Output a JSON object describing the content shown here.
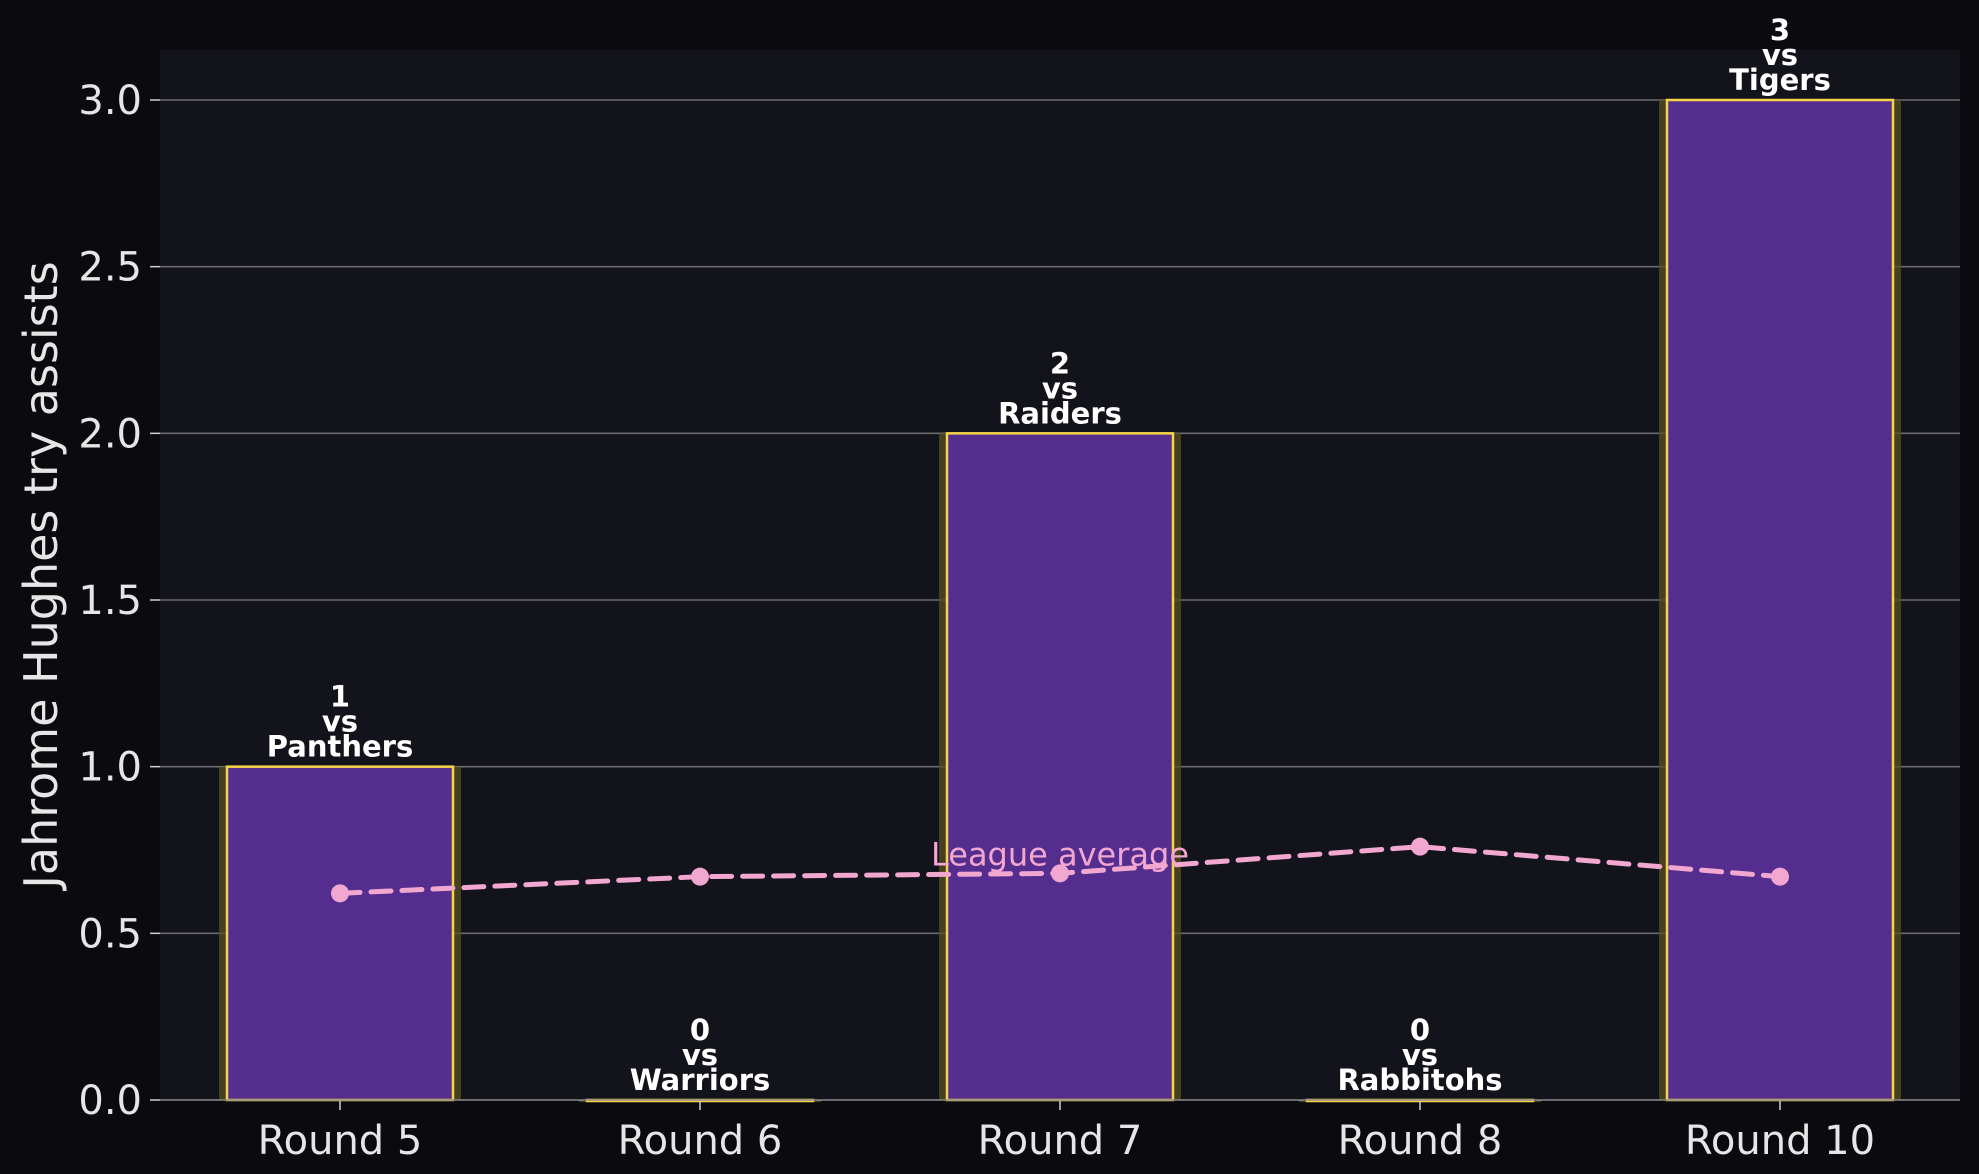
{
  "chart_data": {
    "type": "bar",
    "title": "",
    "xlabel": "",
    "ylabel": "Jahrome Hughes try assists",
    "categories": [
      "Round 5",
      "Round 6",
      "Round 7",
      "Round 8",
      "Round 10"
    ],
    "series": [
      {
        "name": "",
        "type": "bar",
        "values": [
          1,
          0,
          2,
          0,
          3
        ],
        "opponents": [
          "Panthers",
          "Warriors",
          "Raiders",
          "Rabbitohs",
          "Tigers"
        ]
      },
      {
        "name": "League average",
        "type": "line",
        "style": "dashed",
        "values": [
          0.62,
          0.67,
          0.68,
          0.76,
          0.67
        ]
      }
    ],
    "bar_label_joiner": "vs",
    "yticks": [
      "0.0",
      "0.5",
      "1.0",
      "1.5",
      "2.0",
      "2.5",
      "3.0"
    ],
    "ylim": [
      0,
      3.15
    ],
    "grid": "y",
    "legend": "none",
    "colors": {
      "figure_background": "#0b0b0f",
      "plot_background": "#12131b",
      "bar_fill": "#552d8f",
      "bar_edge": "#f5d547",
      "bar_glow": "#5a5022",
      "grid": "#6c6c70",
      "line": "#f2a7d0"
    }
  }
}
